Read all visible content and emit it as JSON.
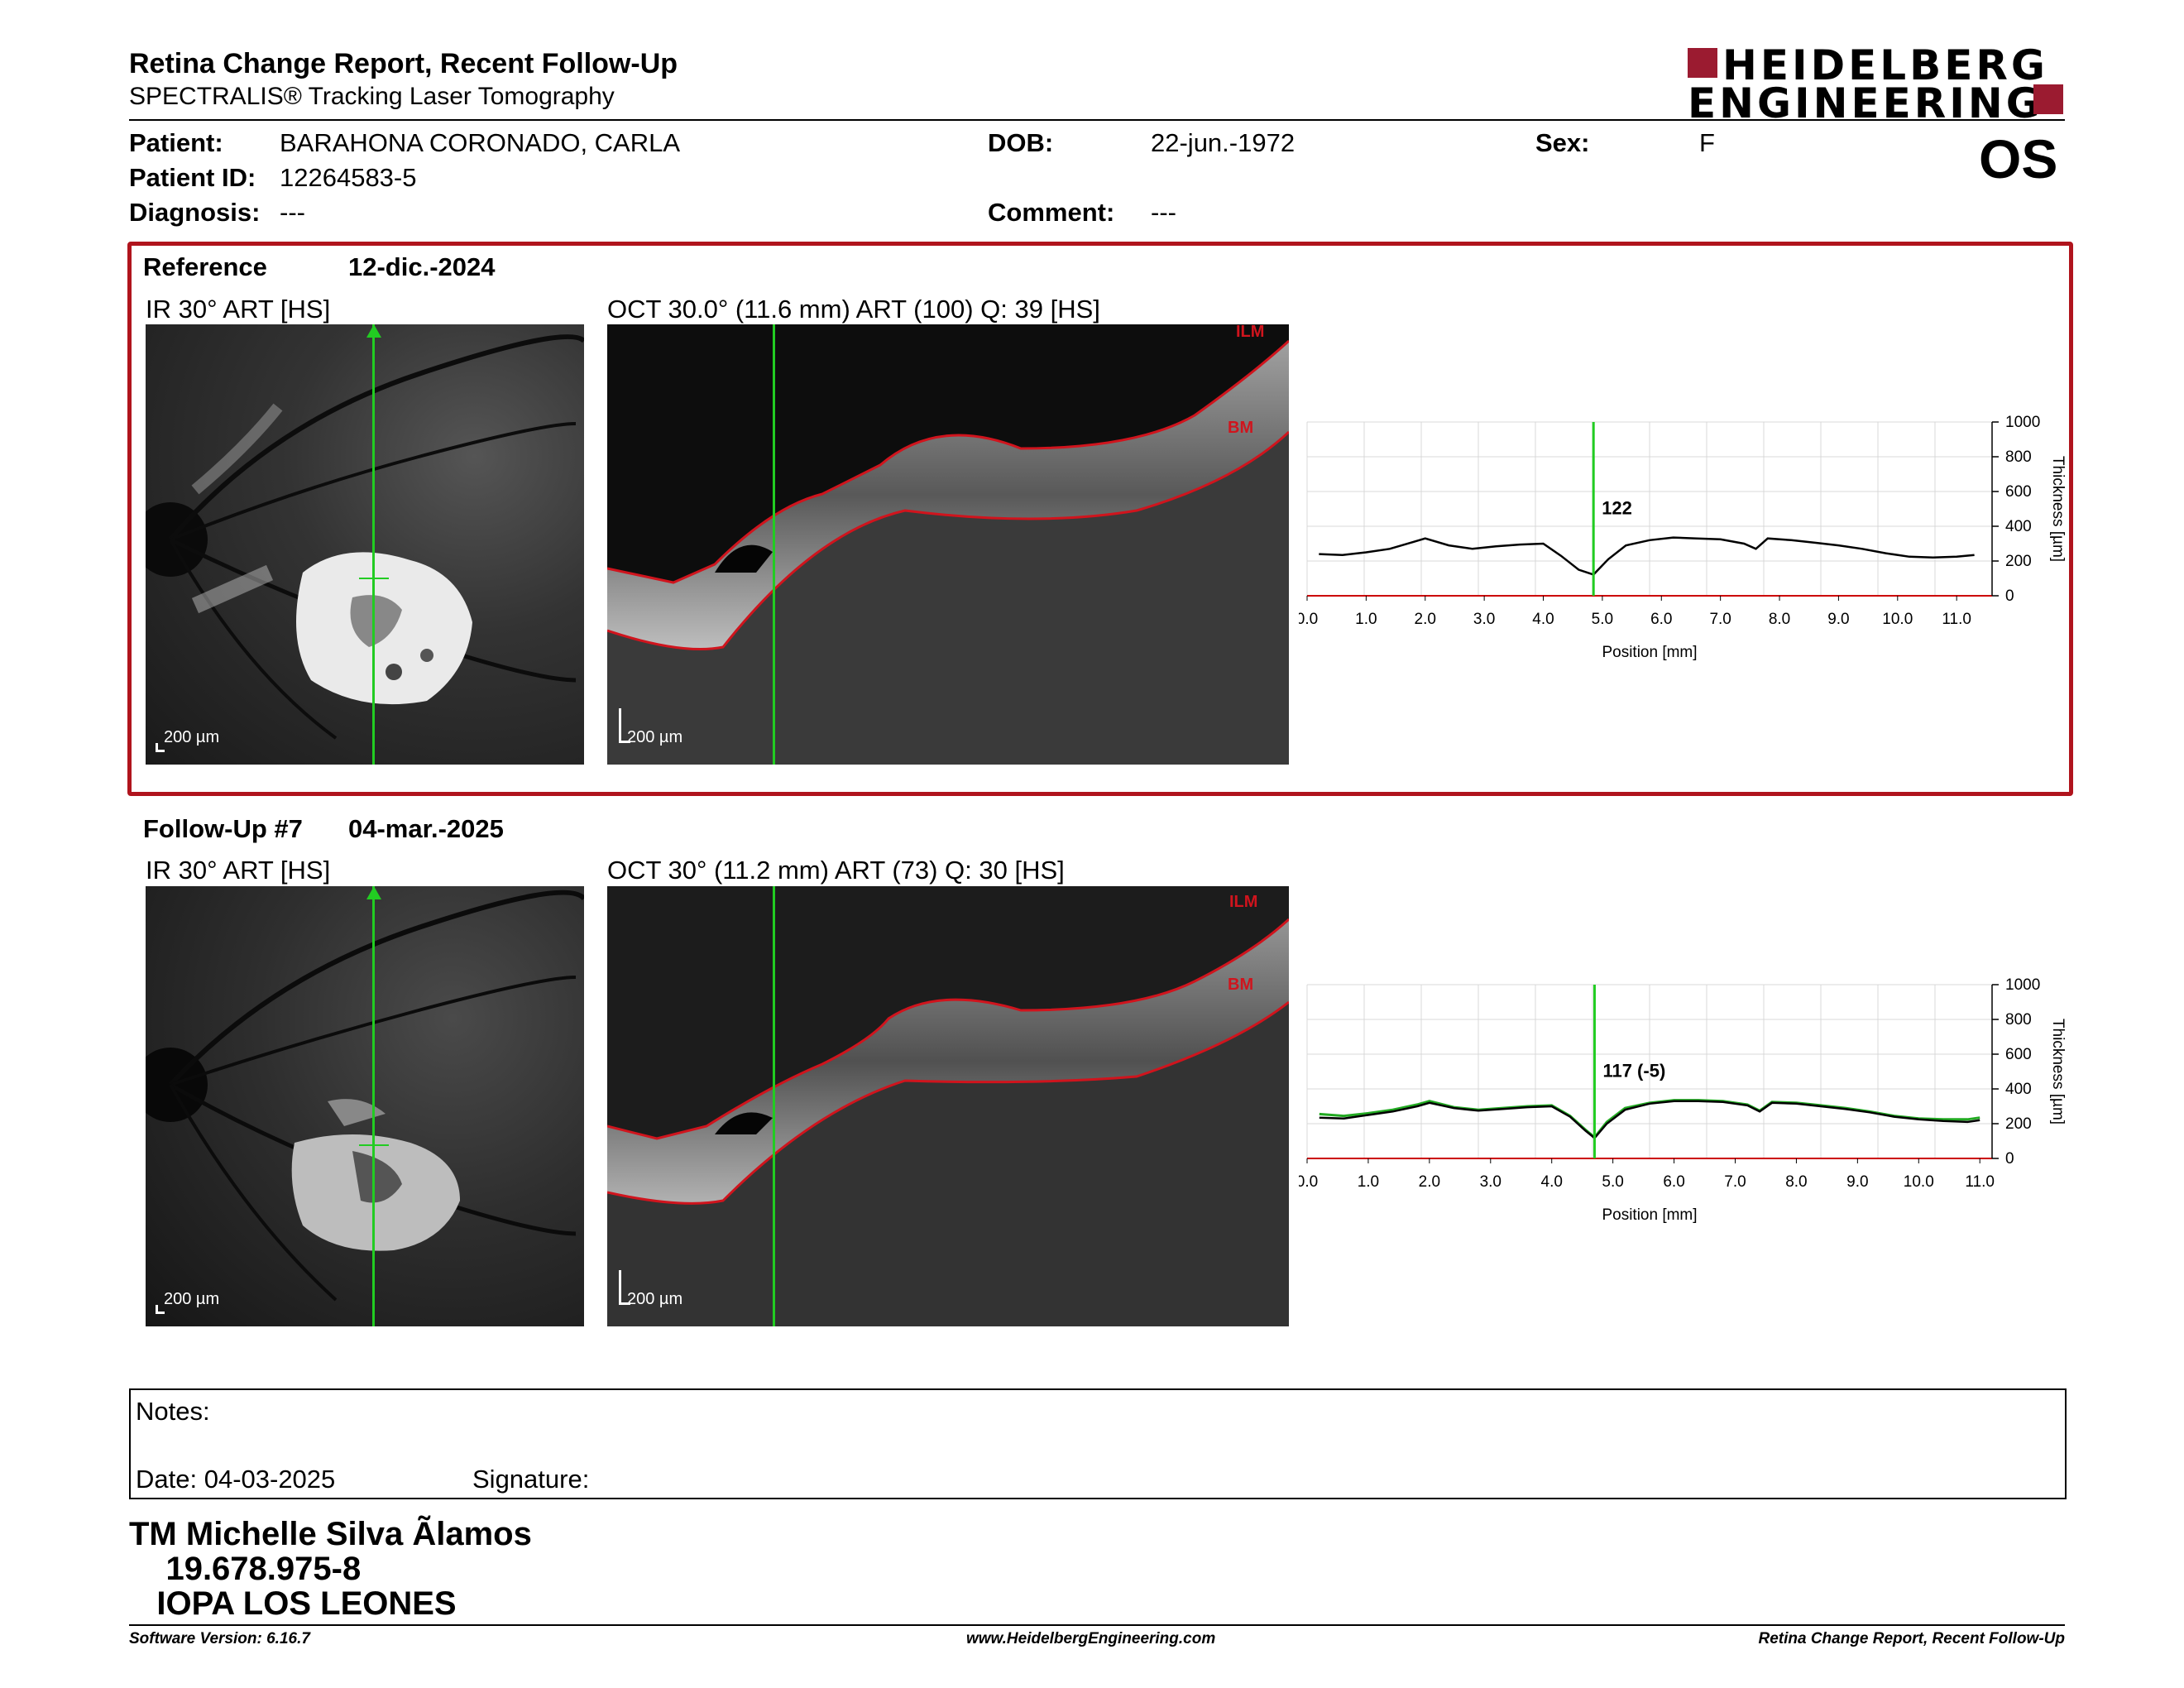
{
  "header": {
    "title": "Retina Change Report, Recent Follow-Up",
    "subtitle": "SPECTRALIS® Tracking Laser Tomography",
    "logo_line1": "HEIDELBERG",
    "logo_line2": "ENGINEERING",
    "eye": "OS"
  },
  "patient": {
    "patient_label": "Patient:",
    "patient_value": "BARAHONA CORONADO, CARLA",
    "id_label": "Patient ID:",
    "id_value": "12264583-5",
    "diagnosis_label": "Diagnosis:",
    "diagnosis_value": "---",
    "dob_label": "DOB:",
    "dob_value": "22-jun.-1972",
    "comment_label": "Comment:",
    "comment_value": "---",
    "sex_label": "Sex:",
    "sex_value": "F"
  },
  "reference": {
    "label": "Reference",
    "date": "12-dic.-2024",
    "ir_caption": "IR 30° ART [HS]",
    "oct_caption": "OCT 30.0° (11.6 mm) ART (100) Q: 39 [HS]",
    "ir_scale": "200 µm",
    "oct_scale": "200 µm",
    "layer_top": "ILM",
    "layer_bottom": "BM",
    "marker_value": "122"
  },
  "followup": {
    "label": "Follow-Up #7",
    "date": "04-mar.-2025",
    "ir_caption": "IR 30° ART [HS]",
    "oct_caption": "OCT 30° (11.2 mm) ART (73) Q: 30 [HS]",
    "ir_scale": "200 µm",
    "oct_scale": "200 µm",
    "layer_top": "ILM",
    "layer_bottom": "BM",
    "marker_value": "117 (-5)"
  },
  "chart_data": [
    {
      "type": "line",
      "xlabel": "Position [mm]",
      "ylabel": "Thickness [µm]",
      "x_ticks": [
        "0.0",
        "1.0",
        "2.0",
        "3.0",
        "4.0",
        "5.0",
        "6.0",
        "7.0",
        "8.0",
        "9.0",
        "10.0",
        "11.0"
      ],
      "y_ticks": [
        "0",
        "200",
        "400",
        "600",
        "800",
        "1000"
      ],
      "xlim": [
        0,
        11.6
      ],
      "ylim": [
        0,
        1000
      ],
      "grid": true,
      "marker_x": 4.85,
      "marker_label": "122",
      "series": [
        {
          "x": [
            0.2,
            0.6,
            1.0,
            1.4,
            1.8,
            2.0,
            2.4,
            2.8,
            3.2,
            3.6,
            4.0,
            4.3,
            4.6,
            4.85,
            5.1,
            5.4,
            5.8,
            6.2,
            6.6,
            7.0,
            7.4,
            7.6,
            7.8,
            8.2,
            8.6,
            9.0,
            9.4,
            9.8,
            10.2,
            10.6,
            11.0,
            11.3
          ],
          "y": [
            240,
            235,
            250,
            270,
            310,
            330,
            290,
            270,
            285,
            295,
            300,
            230,
            150,
            122,
            210,
            290,
            320,
            335,
            330,
            325,
            300,
            270,
            330,
            320,
            305,
            290,
            270,
            245,
            225,
            220,
            225,
            235
          ]
        }
      ]
    },
    {
      "type": "line",
      "xlabel": "Position [mm]",
      "ylabel": "Thickness [µm]",
      "x_ticks": [
        "0.0",
        "1.0",
        "2.0",
        "3.0",
        "4.0",
        "5.0",
        "6.0",
        "7.0",
        "8.0",
        "9.0",
        "10.0",
        "11.0"
      ],
      "y_ticks": [
        "0",
        "200",
        "400",
        "600",
        "800",
        "1000"
      ],
      "xlim": [
        0,
        11.2
      ],
      "ylim": [
        0,
        1000
      ],
      "grid": true,
      "marker_x": 4.7,
      "marker_label": "117 (-5)",
      "series": [
        {
          "x": [
            0.2,
            0.6,
            1.0,
            1.4,
            1.8,
            2.0,
            2.4,
            2.8,
            3.2,
            3.6,
            4.0,
            4.3,
            4.55,
            4.7,
            4.9,
            5.2,
            5.6,
            6.0,
            6.4,
            6.8,
            7.2,
            7.4,
            7.6,
            8.0,
            8.4,
            8.8,
            9.2,
            9.6,
            10.0,
            10.4,
            10.8,
            11.0
          ],
          "y": [
            235,
            230,
            250,
            270,
            300,
            320,
            290,
            275,
            285,
            295,
            300,
            240,
            160,
            117,
            200,
            280,
            315,
            330,
            330,
            325,
            305,
            270,
            320,
            315,
            300,
            285,
            265,
            240,
            225,
            215,
            210,
            220
          ]
        },
        {
          "x": [
            0.2,
            0.6,
            1.0,
            1.4,
            1.8,
            2.0,
            2.4,
            2.8,
            3.2,
            3.6,
            4.0,
            4.3,
            4.55,
            4.7,
            4.9,
            5.2,
            5.6,
            6.0,
            6.4,
            6.8,
            7.2,
            7.4,
            7.6,
            8.0,
            8.4,
            8.8,
            9.2,
            9.6,
            10.0,
            10.4,
            10.8,
            11.0
          ],
          "y": [
            255,
            245,
            260,
            280,
            310,
            330,
            295,
            280,
            290,
            300,
            305,
            245,
            165,
            122,
            210,
            290,
            320,
            335,
            335,
            330,
            310,
            275,
            325,
            320,
            305,
            290,
            270,
            245,
            230,
            225,
            225,
            235
          ]
        }
      ]
    }
  ],
  "notes": {
    "notes_label": "Notes:",
    "date_label": "Date: 04-03-2025",
    "signature_label": "Signature:"
  },
  "signature": {
    "line1": "TM Michelle Silva Ãlamos",
    "line2": "    19.678.975-8",
    "line3": "   IOPA LOS LEONES"
  },
  "footer": {
    "left": "Software Version: 6.16.7",
    "center": "www.HeidelbergEngineering.com",
    "right": "Retina Change Report, Recent Follow-Up"
  },
  "colors": {
    "brand_red": "#9b1b30",
    "frame_red": "#b0141d",
    "marker_green": "#22cc22",
    "layer_red": "#d0141d"
  }
}
